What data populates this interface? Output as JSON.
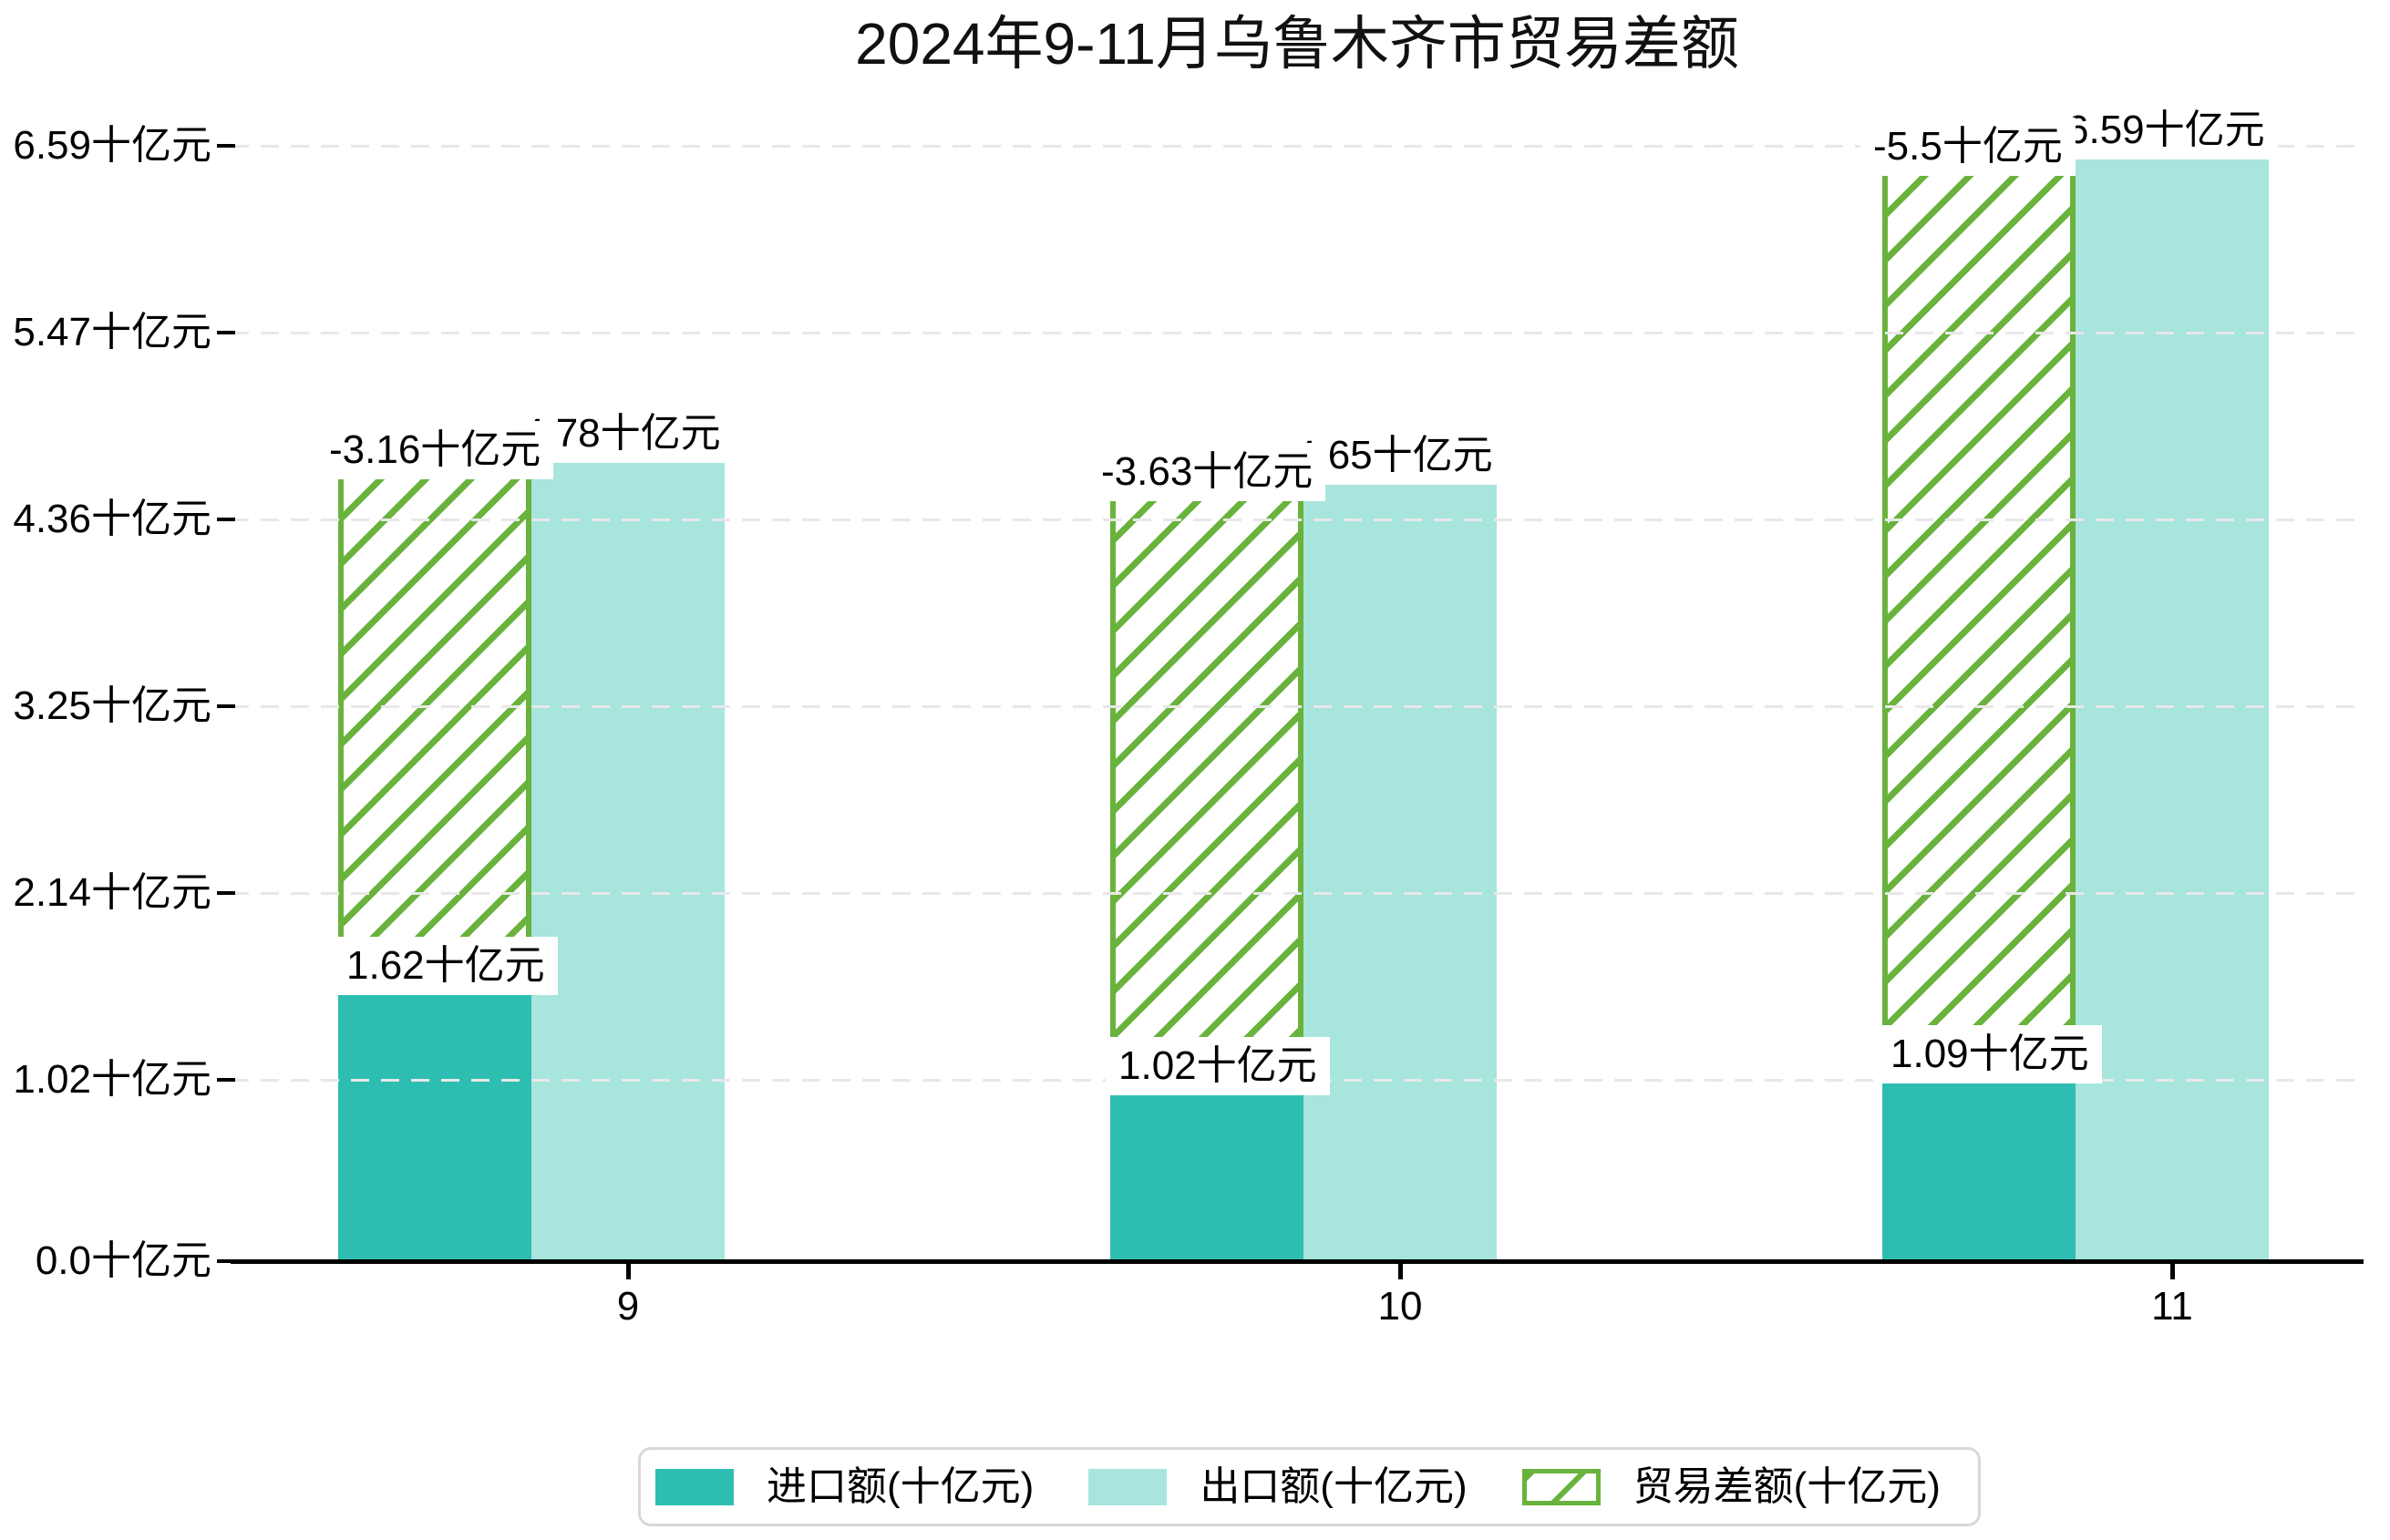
{
  "title": "2024年9-11月乌鲁木齐市贸易差额",
  "legend": {
    "items": [
      {
        "label": "进口额(十亿元)"
      },
      {
        "label": "出口额(十亿元)"
      },
      {
        "label": "贸易差额(十亿元)"
      }
    ]
  },
  "colors": {
    "import": "#2ebeb1",
    "export": "#a7e5dd",
    "balance_green": "#69b33d",
    "grid": "#e8e8e8",
    "axis": "#000000",
    "label_background": "#ffffff",
    "legend_border": "#d8d8d8",
    "text": "#000000"
  },
  "chart_data": {
    "type": "bar",
    "title": "2024年9-11月乌鲁木齐市贸易差额",
    "categories": [
      "9",
      "10",
      "11"
    ],
    "series": [
      {
        "name": "进口额(十亿元)",
        "values": [
          1.62,
          1.02,
          1.09
        ],
        "labels": [
          "1.62十亿元",
          "1.02十亿元",
          "1.09十亿元"
        ],
        "color": "#2ebeb1",
        "style": "solid"
      },
      {
        "name": "出口额(十亿元)",
        "values": [
          4.78,
          4.65,
          6.59
        ],
        "labels": [
          "4.78十亿元",
          "4.65十亿元",
          "6.59十亿元"
        ],
        "color": "#a7e5dd",
        "style": "solid"
      },
      {
        "name": "贸易差额(十亿元)",
        "values": [
          -3.16,
          -3.63,
          -5.5
        ],
        "labels": [
          "-3.16十亿元",
          "-3.63十亿元",
          "-5.5十亿元"
        ],
        "color": "#69b33d",
        "style": "hatched-outline",
        "drawn_as": "stacked from import top up to export top"
      }
    ],
    "unit": "十亿元",
    "xlabel": "",
    "ylabel": "",
    "y_ticks": [
      "0.0十亿元",
      "1.02十亿元",
      "2.14十亿元",
      "3.25十亿元",
      "4.36十亿元",
      "5.47十亿元",
      "6.59十亿元"
    ],
    "ylim": [
      0,
      6.59
    ],
    "grid": true,
    "grid_style": "dashed",
    "legend_position": "bottom"
  }
}
